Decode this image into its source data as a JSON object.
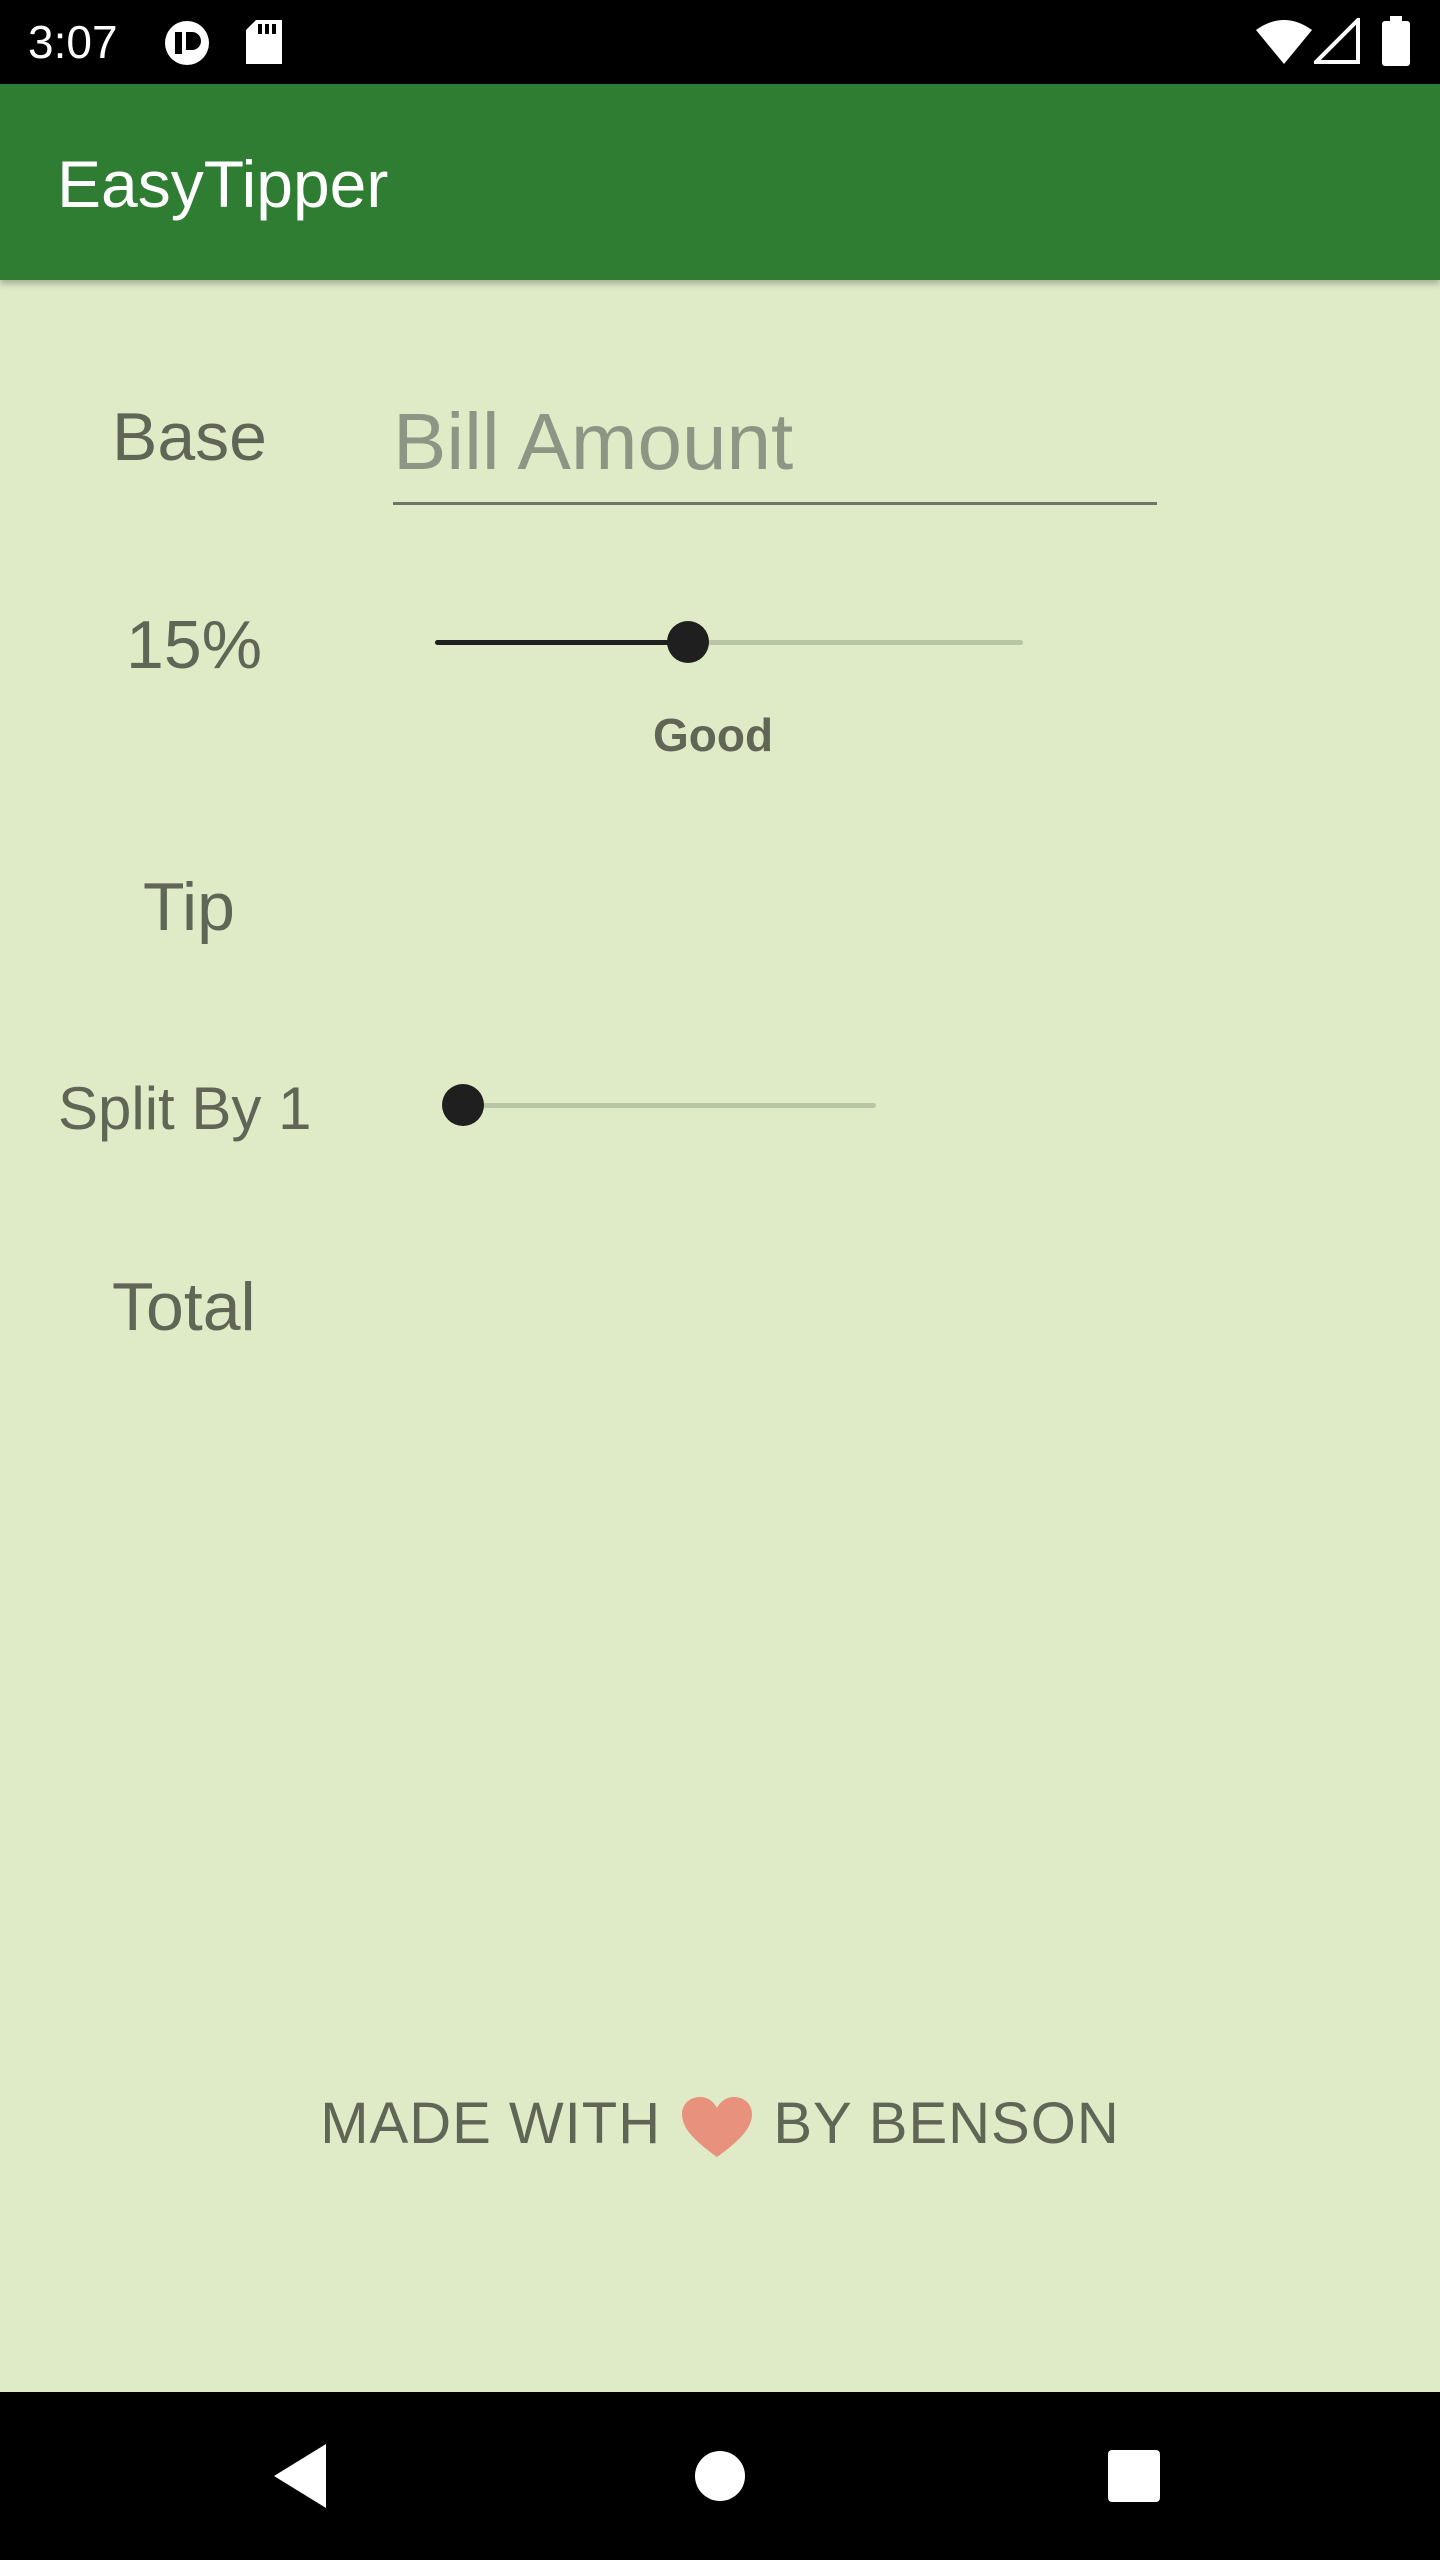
{
  "status_bar": {
    "time": "3:07",
    "icons": [
      "app-notification-icon",
      "sd-card-icon",
      "wifi-icon",
      "signal-icon",
      "battery-icon"
    ]
  },
  "app_bar": {
    "title": "EasyTipper",
    "color": "#2e7d32"
  },
  "form": {
    "base_label": "Base",
    "bill_placeholder": "Bill Amount",
    "bill_value": "",
    "tip_percent_label": "15%",
    "tip_percent_value": 15,
    "tip_slider_fraction": 0.43,
    "tip_description": "Good",
    "tip_label": "Tip",
    "split_label": "Split By 1",
    "split_slider_fraction": 0,
    "total_label": "Total"
  },
  "footer": {
    "prefix": "MADE WITH",
    "suffix": "BY BENSON",
    "icon": "heart-icon"
  },
  "nav_bar": {
    "buttons": [
      "back-icon",
      "home-icon",
      "recents-icon"
    ]
  },
  "colors": {
    "background": "#dfebc7",
    "text": "#5f6656",
    "accent": "#2e7d32"
  }
}
